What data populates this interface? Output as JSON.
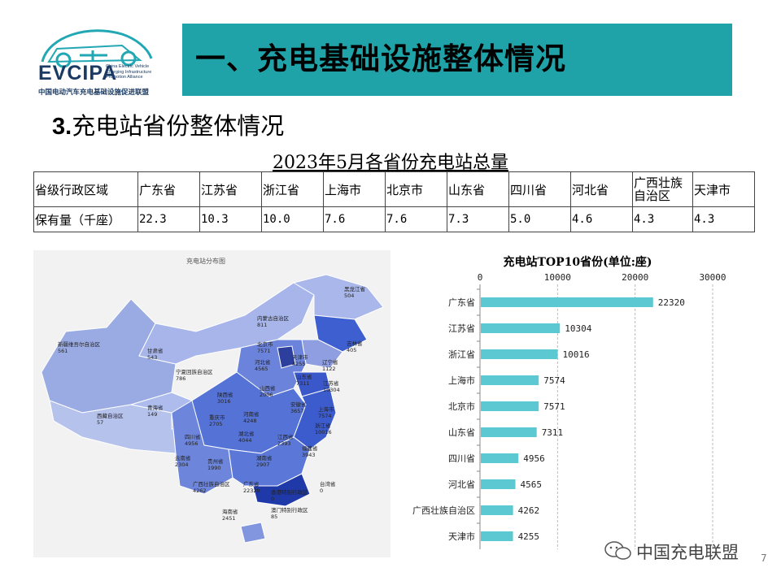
{
  "logo": {
    "text": "EVCIPA",
    "subtitle_lines": [
      "China Electric Vehicle",
      "Charging Infrastructure",
      "Promotion Alliance"
    ],
    "cn": "中国电动汽车充电基础设施促进联盟"
  },
  "banner": {
    "title": "一、充电基础设施整体情况"
  },
  "section": {
    "num": "3.",
    "title": "充电站省份整体情况"
  },
  "table": {
    "title": "2023年5月各省份充电站总量",
    "row1_label": "省级行政区域",
    "row2_label": "保有量（千座）",
    "provinces": [
      "广东省",
      "江苏省",
      "浙江省",
      "上海市",
      "北京市",
      "山东省",
      "四川省",
      "河北省",
      "广西壮族自治区",
      "天津市"
    ],
    "values": [
      "22.3",
      "10.3",
      "10.0",
      "7.6",
      "7.6",
      "7.3",
      "5.0",
      "4.6",
      "4.3",
      "4.3"
    ]
  },
  "map": {
    "title": "充电站分布图",
    "labels": [
      {
        "name": "黑龙江省",
        "value": "504"
      },
      {
        "name": "吉林省",
        "value": "405"
      },
      {
        "name": "辽宁省",
        "value": "1122"
      },
      {
        "name": "内蒙古自治区",
        "value": "811"
      },
      {
        "name": "北京市",
        "value": "7571"
      },
      {
        "name": "天津市",
        "value": "4255"
      },
      {
        "name": "河北省",
        "value": "4565"
      },
      {
        "name": "新疆维吾尔自治区",
        "value": "561"
      },
      {
        "name": "甘肃省",
        "value": "543"
      },
      {
        "name": "宁夏回族自治区",
        "value": "786"
      },
      {
        "name": "山西省",
        "value": "2006"
      },
      {
        "name": "山东省",
        "value": "7311"
      },
      {
        "name": "江苏省",
        "value": "10304"
      },
      {
        "name": "青海省",
        "value": "149"
      },
      {
        "name": "陕西省",
        "value": "3016"
      },
      {
        "name": "河南省",
        "value": "4248"
      },
      {
        "name": "安徽省",
        "value": "3657"
      },
      {
        "name": "上海市",
        "value": "7574"
      },
      {
        "name": "西藏自治区",
        "value": "57"
      },
      {
        "name": "重庆市",
        "value": "2705"
      },
      {
        "name": "湖北省",
        "value": "4044"
      },
      {
        "name": "浙江省",
        "value": "10016"
      },
      {
        "name": "四川省",
        "value": "4956"
      },
      {
        "name": "江西省",
        "value": "2393"
      },
      {
        "name": "福建省",
        "value": "3943"
      },
      {
        "name": "云南省",
        "value": "2304"
      },
      {
        "name": "贵州省",
        "value": "1990"
      },
      {
        "name": "湖南省",
        "value": "2907"
      },
      {
        "name": "广西壮族自治区",
        "value": "4262"
      },
      {
        "name": "广东省",
        "value": "22320"
      },
      {
        "name": "台湾省",
        "value": "0"
      },
      {
        "name": "香港特别行政区",
        "value": "0"
      },
      {
        "name": "澳门特别行政区",
        "value": "85"
      },
      {
        "name": "海南省",
        "value": "2451"
      }
    ]
  },
  "chart_data": {
    "type": "bar",
    "title": "充电站TOP10省份(单位:座)",
    "orientation": "horizontal",
    "categories": [
      "广东省",
      "江苏省",
      "浙江省",
      "上海市",
      "北京市",
      "山东省",
      "四川省",
      "河北省",
      "广西壮族自治区",
      "天津市"
    ],
    "values": [
      22320,
      10304,
      10016,
      7574,
      7571,
      7311,
      4956,
      4565,
      4262,
      4255
    ],
    "xlim": [
      0,
      30000
    ],
    "xticks": [
      0,
      10000,
      20000,
      30000
    ],
    "bar_color": "#5cc8d2",
    "grid": true
  },
  "watermark": {
    "text": "中国充电联盟"
  },
  "page_number": "7",
  "colors": {
    "banner": "#20a3a8",
    "bar": "#5cc8d2",
    "logo": "#1a3a63",
    "logo_accent": "#22a7b4"
  }
}
